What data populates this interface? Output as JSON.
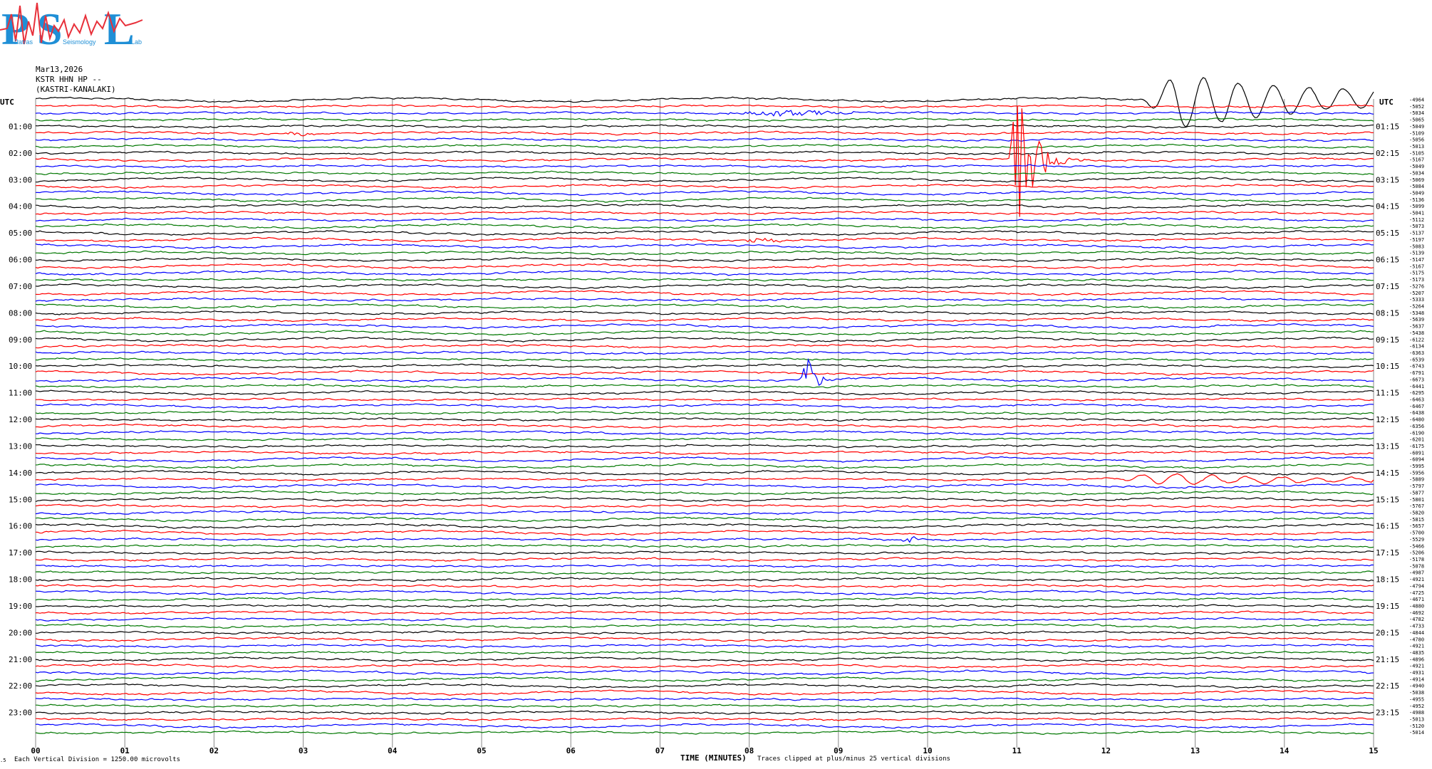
{
  "logo": {
    "letters": [
      "P",
      "S",
      "L"
    ],
    "subtitle_words": [
      "Patras",
      "Seismology",
      "Lab"
    ]
  },
  "header": {
    "date": "Mar13,2026",
    "station": "KSTR HHN HP --",
    "location": "(KASTRI-KANALAKI)"
  },
  "chart_data": {
    "type": "line",
    "title": "",
    "xlabel": "TIME (MINUTES)",
    "ylabel": "",
    "left_axis_label": "UTC",
    "right_axis_label": "UTC",
    "xlim": [
      0,
      15
    ],
    "x_ticks": [
      "00",
      "01",
      "02",
      "03",
      "04",
      "05",
      "06",
      "07",
      "08",
      "09",
      "10",
      "11",
      "12",
      "13",
      "14",
      "15"
    ],
    "left_tick_labels": [
      "01:00",
      "02:00",
      "03:00",
      "04:00",
      "05:00",
      "06:00",
      "07:00",
      "08:00",
      "09:00",
      "10:00",
      "11:00",
      "12:00",
      "13:00",
      "14:00",
      "15:00",
      "16:00",
      "17:00",
      "18:00",
      "19:00",
      "20:00",
      "21:00",
      "22:00",
      "23:00"
    ],
    "right_tick_labels": [
      "01:15",
      "02:15",
      "03:15",
      "04:15",
      "05:15",
      "06:15",
      "07:15",
      "08:15",
      "09:15",
      "10:15",
      "11:15",
      "12:15",
      "13:15",
      "14:15",
      "15:15",
      "16:15",
      "17:15",
      "18:15",
      "19:15",
      "20:15",
      "21:15",
      "22:15",
      "23:15"
    ],
    "trace_count": 96,
    "trace_color_cycle": [
      "#000000",
      "#ff0000",
      "#0000ff",
      "#007700"
    ],
    "trace_offsets": [
      "-4964",
      "-5052",
      "-5034",
      "-5065",
      "-5049",
      "-5109",
      "-5056",
      "-5013",
      "-5105",
      "-5167",
      "-5049",
      "-5034",
      "-5069",
      "-5084",
      "-5049",
      "-5136",
      "-5099",
      "-5041",
      "-5112",
      "-5073",
      "-5137",
      "-5197",
      "-5083",
      "-5139",
      "-5147",
      "-5167",
      "-5175",
      "-5173",
      "-5276",
      "-5207",
      "-5333",
      "-5264",
      "-5348",
      "-5639",
      "-5637",
      "-5438",
      "-6122",
      "-6134",
      "-6363",
      "-6539",
      "-6743",
      "-6791",
      "-6673",
      "-6441",
      "-6295",
      "-6463",
      "-6467",
      "-6438",
      "-6480",
      "-6356",
      "-6190",
      "-6201",
      "-6175",
      "-6091",
      "-6094",
      "-5995",
      "-5956",
      "-5889",
      "-5797",
      "-5877",
      "-5801",
      "-5767",
      "-5820",
      "-5815",
      "-5657",
      "-5700",
      "-5529",
      "-5466",
      "-5206",
      "-5178",
      "-5078",
      "-4987",
      "-4921",
      "-4794",
      "-4725",
      "-4671",
      "-4880",
      "-4692",
      "-4782",
      "-4733",
      "-4844",
      "-4780",
      "-4921",
      "-4835",
      "-4896",
      "-4921",
      "-4931",
      "-4914",
      "-4940",
      "-5038",
      "-4955",
      "-4952",
      "-4988",
      "-5013",
      "-5120",
      "-5014"
    ],
    "events": [
      {
        "trace": 0,
        "minute": 12.8,
        "amplitude": 38,
        "duration": 2.2,
        "kind": "long-period",
        "color": "#0000ff"
      },
      {
        "trace": 2,
        "minute": 8.5,
        "amplitude": 5,
        "duration": 0.8,
        "kind": "burst",
        "color": "#007700"
      },
      {
        "trace": 5,
        "minute": 2.95,
        "amplitude": 4,
        "duration": 0.2,
        "kind": "burst",
        "color": "#ff0000"
      },
      {
        "trace": 9,
        "minute": 11.0,
        "amplitude": 110,
        "duration": 0.9,
        "kind": "earthquake",
        "color": "#ff0000"
      },
      {
        "trace": 21,
        "minute": 8.15,
        "amplitude": 5,
        "duration": 0.25,
        "kind": "burst",
        "color": "#ff0000"
      },
      {
        "trace": 42,
        "minute": 8.65,
        "amplitude": 30,
        "duration": 0.6,
        "kind": "earthquake",
        "color": "#0000ff"
      },
      {
        "trace": 57,
        "minute": 12.5,
        "amplitude": 8,
        "duration": 2.5,
        "kind": "long-period",
        "color": "#0000ff"
      },
      {
        "trace": 66,
        "minute": 9.8,
        "amplitude": 6,
        "duration": 0.15,
        "kind": "burst",
        "color": "#007700"
      }
    ]
  },
  "footer": {
    "scale_note": "Each Vertical Division = 1250.00 microvolts",
    "clip_note": "Traces clipped at plus/minus 25 vertical divisions"
  },
  "colors": {
    "background": "#ffffff",
    "grid": "#888888",
    "text": "#000000",
    "logo_blue": "#1f8fd6",
    "logo_red": "#e8303a"
  }
}
